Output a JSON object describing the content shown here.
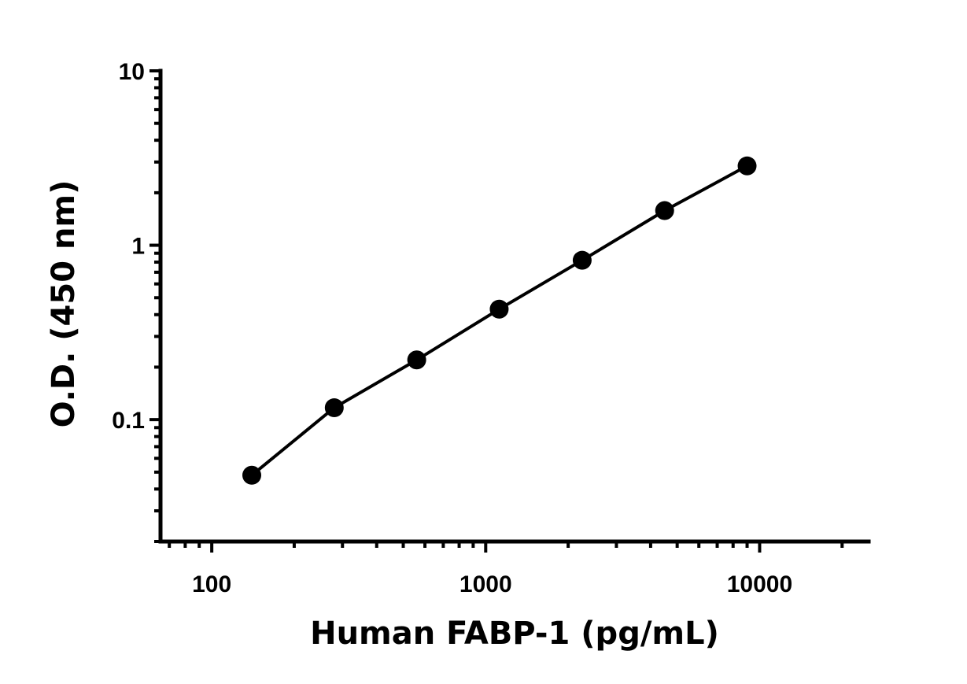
{
  "chart_data": {
    "type": "scatter",
    "xlabel": "Human FABP-1 (pg/mL)",
    "ylabel": "O.D. (450 nm)",
    "x_scale": "log",
    "y_scale": "log",
    "xlim": [
      65,
      25000
    ],
    "ylim": [
      0.02,
      10
    ],
    "x_tick_labels": [
      "100",
      "1000",
      "10000"
    ],
    "y_tick_labels": [
      "0.1",
      "1",
      "10"
    ],
    "grid": false,
    "series": [
      {
        "x": [
          140,
          280,
          560,
          1120,
          2250,
          4500,
          9000
        ],
        "y": [
          0.048,
          0.117,
          0.22,
          0.43,
          0.82,
          1.58,
          2.85
        ],
        "fit_line": true
      }
    ],
    "colors": {
      "marker": "#000000",
      "line": "#000000"
    }
  }
}
